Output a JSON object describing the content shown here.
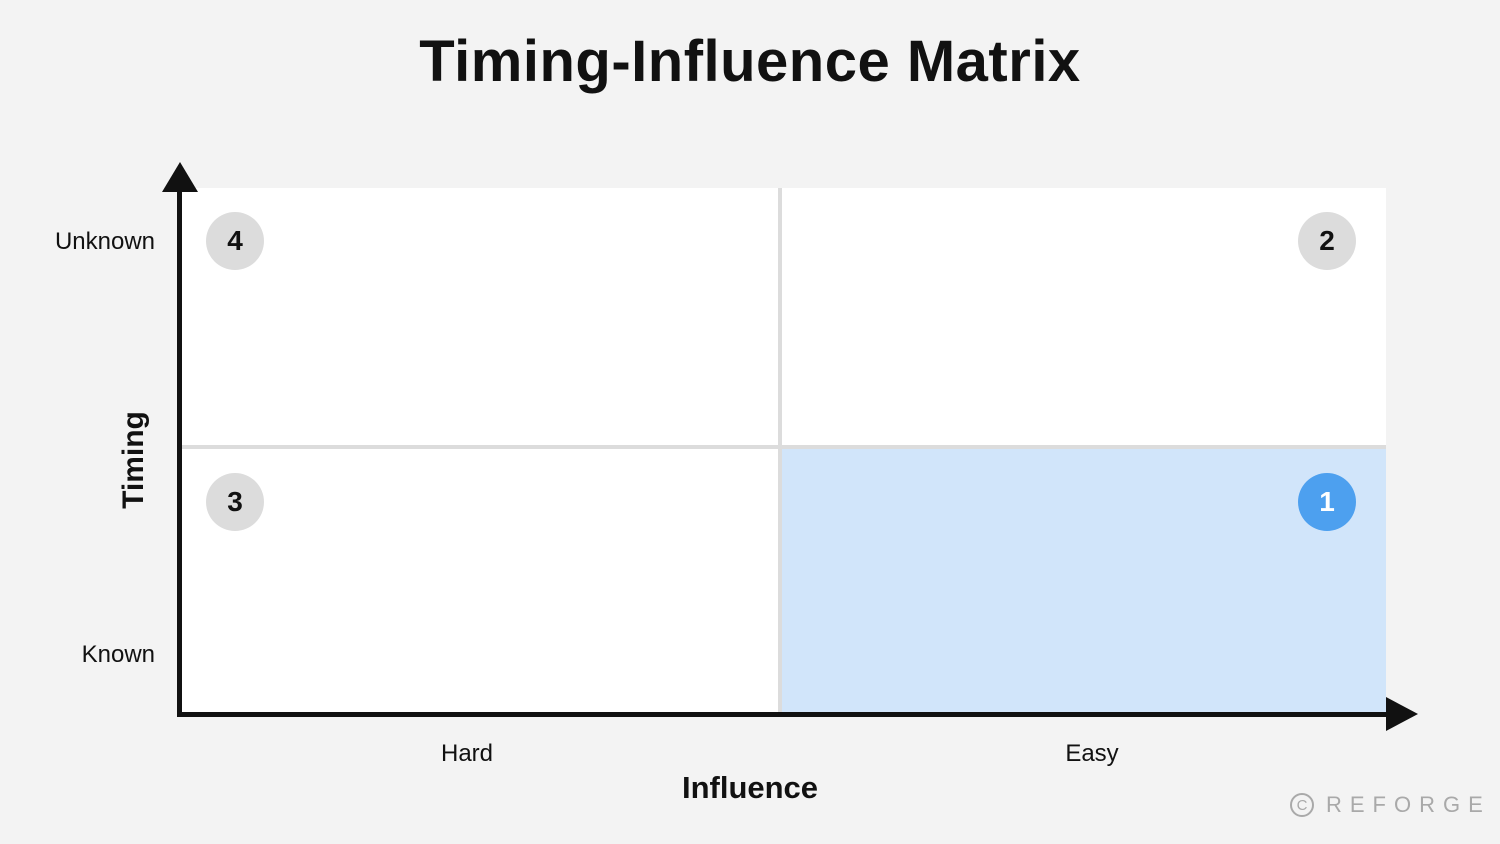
{
  "title": "Timing-Influence Matrix",
  "axes": {
    "x": {
      "title": "Influence",
      "levels": [
        "Hard",
        "Easy"
      ]
    },
    "y": {
      "title": "Timing",
      "levels": [
        "Known",
        "Unknown"
      ]
    }
  },
  "quadrants": [
    {
      "number": "4",
      "influence": "Hard",
      "timing": "Unknown",
      "highlighted": false
    },
    {
      "number": "2",
      "influence": "Easy",
      "timing": "Unknown",
      "highlighted": false
    },
    {
      "number": "3",
      "influence": "Hard",
      "timing": "Known",
      "highlighted": false
    },
    {
      "number": "1",
      "influence": "Easy",
      "timing": "Known",
      "highlighted": true
    }
  ],
  "colors": {
    "background": "#f3f3f3",
    "quadrant": "#ffffff",
    "highlight_quadrant": "#d1e5fa",
    "badge": "#dcdcdc",
    "highlight_badge": "#4da0ef"
  },
  "watermark": {
    "symbol": "C",
    "text": "REFORGE"
  }
}
